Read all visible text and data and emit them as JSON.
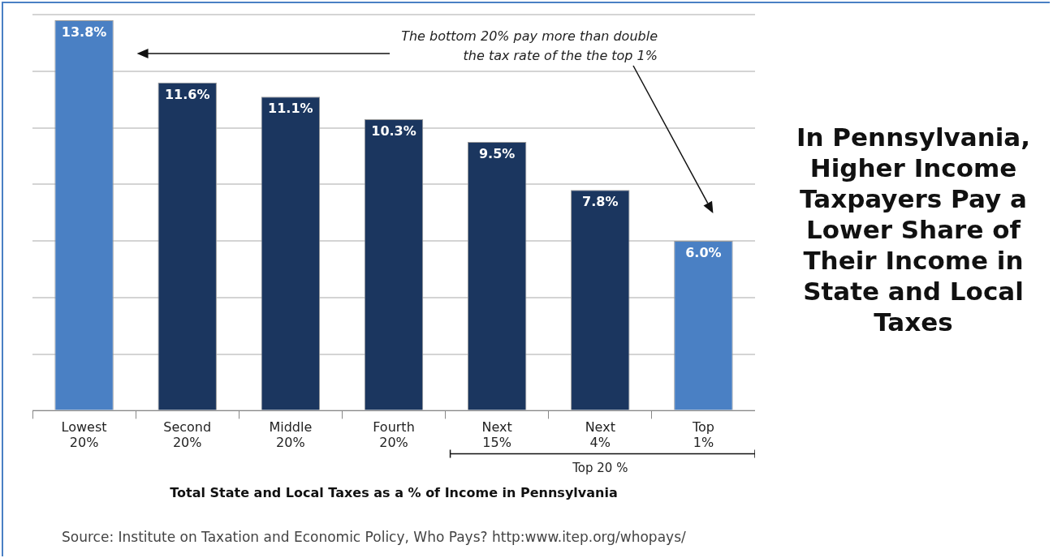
{
  "chart_data": {
    "type": "bar",
    "title": "In Pennsylvania, Higher Income Taxpayers Pay a Lower Share of Their Income in State and Local Taxes",
    "xlabel": "Total State and Local Taxes as a % of Income in Pennsylvania",
    "categories": [
      "Lowest 20%",
      "Second 20%",
      "Middle 20%",
      "Fourth 20%",
      "Next 15%",
      "Next 4%",
      "Top 1%"
    ],
    "values": [
      13.8,
      11.6,
      11.1,
      10.3,
      9.5,
      7.8,
      6.0
    ],
    "value_labels": [
      "13.8%",
      "11.6%",
      "11.1%",
      "10.3%",
      "9.5%",
      "7.8%",
      "6.0%"
    ],
    "colors": [
      "#4a80c4",
      "#1b365f",
      "#1b365f",
      "#1b365f",
      "#1b365f",
      "#1b365f",
      "#4a80c4"
    ],
    "annotations": [
      "The bottom 20% pay more than double the tax rate of the the top 1%",
      "Top 20 %",
      "Source: Institute on Taxation and Economic Policy, Who Pays? http:www.itep.org/whopays/"
    ],
    "grid": "y",
    "tick_labels": "x",
    "legend": false
  }
}
